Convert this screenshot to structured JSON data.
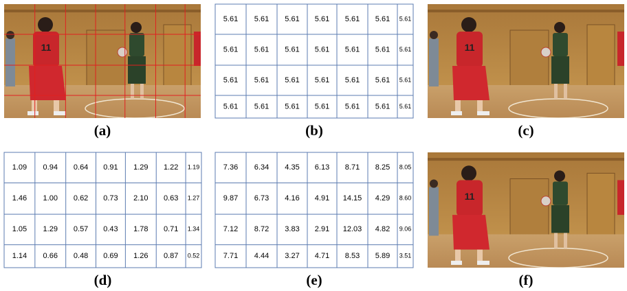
{
  "panels": [
    {
      "label": "(a)"
    },
    {
      "label": "(b)",
      "rows": [
        [
          "5.61",
          "5.61",
          "5.61",
          "5.61",
          "5.61",
          "5.61",
          "5.61"
        ],
        [
          "5.61",
          "5.61",
          "5.61",
          "5.61",
          "5.61",
          "5.61",
          "5.61"
        ],
        [
          "5.61",
          "5.61",
          "5.61",
          "5.61",
          "5.61",
          "5.61",
          "5.61"
        ],
        [
          "5.61",
          "5.61",
          "5.61",
          "5.61",
          "5.61",
          "5.61",
          "5.61"
        ]
      ]
    },
    {
      "label": "(c)"
    },
    {
      "label": "(d)",
      "rows": [
        [
          "1.09",
          "0.94",
          "0.64",
          "0.91",
          "1.29",
          "1.22",
          "1.19"
        ],
        [
          "1.46",
          "1.00",
          "0.62",
          "0.73",
          "2.10",
          "0.63",
          "1.27"
        ],
        [
          "1.05",
          "1.29",
          "0.57",
          "0.43",
          "1.78",
          "0.71",
          "1.34"
        ],
        [
          "1.14",
          "0.66",
          "0.48",
          "0.69",
          "1.26",
          "0.87",
          "0.52"
        ]
      ]
    },
    {
      "label": "(e)",
      "rows": [
        [
          "7.36",
          "6.34",
          "4.35",
          "6.13",
          "8.71",
          "8.25",
          "8.05"
        ],
        [
          "9.87",
          "6.73",
          "4.16",
          "4.91",
          "14.15",
          "4.29",
          "8.60"
        ],
        [
          "7.12",
          "8.72",
          "3.83",
          "2.91",
          "12.03",
          "4.82",
          "9.06"
        ],
        [
          "7.71",
          "4.44",
          "3.27",
          "4.71",
          "8.53",
          "5.89",
          "3.51"
        ]
      ]
    },
    {
      "label": "(f)"
    }
  ]
}
